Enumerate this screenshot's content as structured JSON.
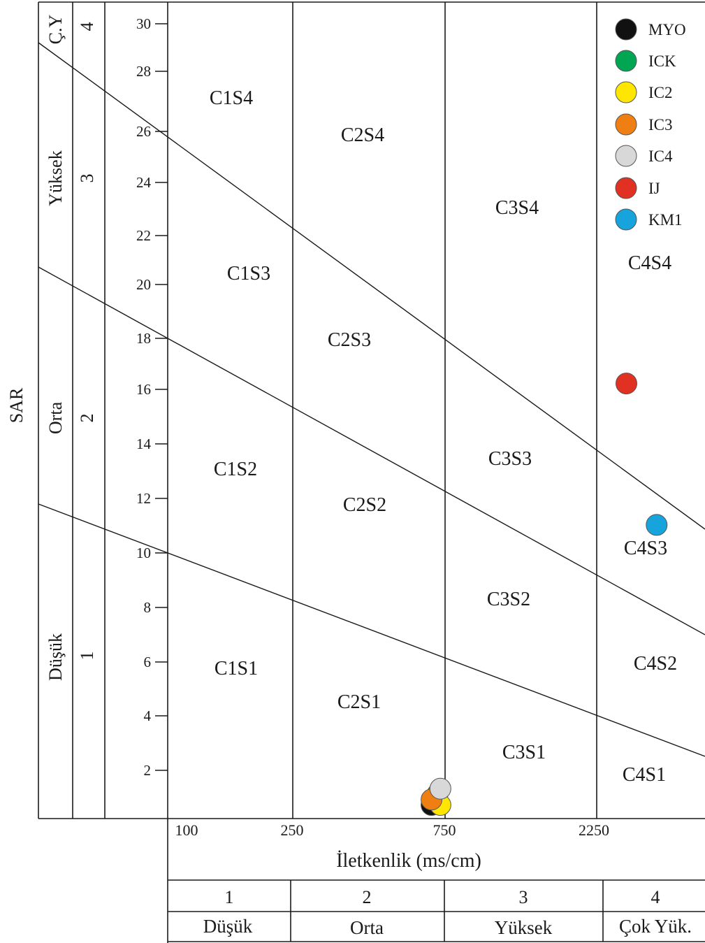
{
  "chart_data": {
    "type": "scatter",
    "ylabel": "SAR",
    "xlabel": "İletkenlik (ms/cm)",
    "ylim": [
      0,
      30
    ],
    "yticks": [
      "2",
      "4",
      "6",
      "8",
      "10",
      "12",
      "14",
      "16",
      "18",
      "20",
      "22",
      "24",
      "26",
      "28",
      "30"
    ],
    "x_scale": "categorical-conductivity-classes",
    "xticks": [
      "100",
      "250",
      "750",
      "2250"
    ],
    "sodium_classes": [
      {
        "number": "1",
        "name": "Düşük"
      },
      {
        "number": "2",
        "name": "Orta"
      },
      {
        "number": "3",
        "name": "Yüksek"
      },
      {
        "number": "4",
        "name": "Ç.Y"
      }
    ],
    "salinity_classes": [
      {
        "number": "1",
        "name": "Düşük"
      },
      {
        "number": "2",
        "name": "Orta"
      },
      {
        "number": "3",
        "name": "Yüksek"
      },
      {
        "number": "4",
        "name": "Çok Yük."
      }
    ],
    "zone_labels": [
      "C1S4",
      "C1S3",
      "C1S2",
      "C1S1",
      "C2S4",
      "C2S3",
      "C2S2",
      "C2S1",
      "C3S4",
      "C3S3",
      "C3S2",
      "C3S1",
      "C4S4",
      "C4S3",
      "C4S2",
      "C4S1"
    ],
    "series": [
      {
        "name": "MYO",
        "color": "#111111",
        "x": 680,
        "y": 0.5
      },
      {
        "name": "ICK",
        "color": "#00a651",
        "x": 710,
        "y": 0.9
      },
      {
        "name": "IC2",
        "color": "#ffe600",
        "x": 725,
        "y": 0.5
      },
      {
        "name": "IC3",
        "color": "#f07f13",
        "x": 680,
        "y": 0.7
      },
      {
        "name": "IC4",
        "color": "#d8d8d8",
        "x": 725,
        "y": 1.1
      },
      {
        "name": "IJ",
        "color": "#e03123",
        "x": 2800,
        "y": 16
      },
      {
        "name": "KM1",
        "color": "#17a3dc",
        "x": 3500,
        "y": 10.8
      }
    ],
    "grid": false,
    "legend_position": "top-right"
  }
}
